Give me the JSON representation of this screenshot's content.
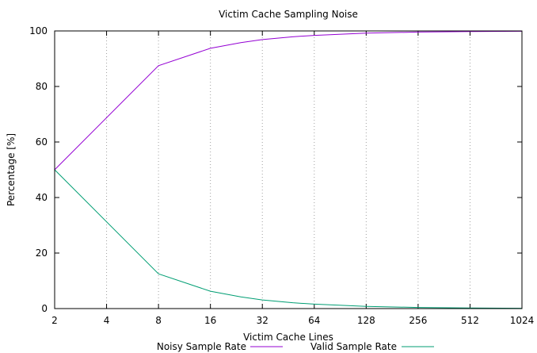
{
  "chart_data": {
    "type": "line",
    "title": "Victim Cache Sampling Noise",
    "xlabel": "Victim Cache Lines",
    "ylabel": "Percentage [%]",
    "xscale": "log2",
    "x_ticks": [
      "2",
      "4",
      "8",
      "16",
      "32",
      "64",
      "128",
      "256",
      "512",
      "1024"
    ],
    "x_tick_values": [
      2,
      4,
      8,
      16,
      32,
      64,
      128,
      256,
      512,
      1024
    ],
    "y_ticks": [
      "0",
      "20",
      "40",
      "60",
      "80",
      "100"
    ],
    "y_tick_values": [
      0,
      20,
      40,
      60,
      80,
      100
    ],
    "xlim": [
      2,
      1024
    ],
    "ylim": [
      0,
      100
    ],
    "grid": "vertical dotted lines at x ticks",
    "legend_position": "bottom",
    "series": [
      {
        "name": "Noisy Sample Rate",
        "color": "#9400d3",
        "x": [
          2,
          8,
          16,
          24,
          32,
          48,
          64,
          128,
          256,
          512,
          1024
        ],
        "values": [
          50,
          87.5,
          93.75,
          95.8,
          96.9,
          97.9,
          98.4,
          99.2,
          99.6,
          99.8,
          99.9
        ]
      },
      {
        "name": "Valid Sample Rate",
        "color": "#009e73",
        "x": [
          2,
          8,
          16,
          24,
          32,
          48,
          64,
          128,
          256,
          512,
          1024
        ],
        "values": [
          50,
          12.5,
          6.25,
          4.2,
          3.1,
          2.1,
          1.6,
          0.8,
          0.4,
          0.2,
          0.1
        ]
      }
    ]
  }
}
